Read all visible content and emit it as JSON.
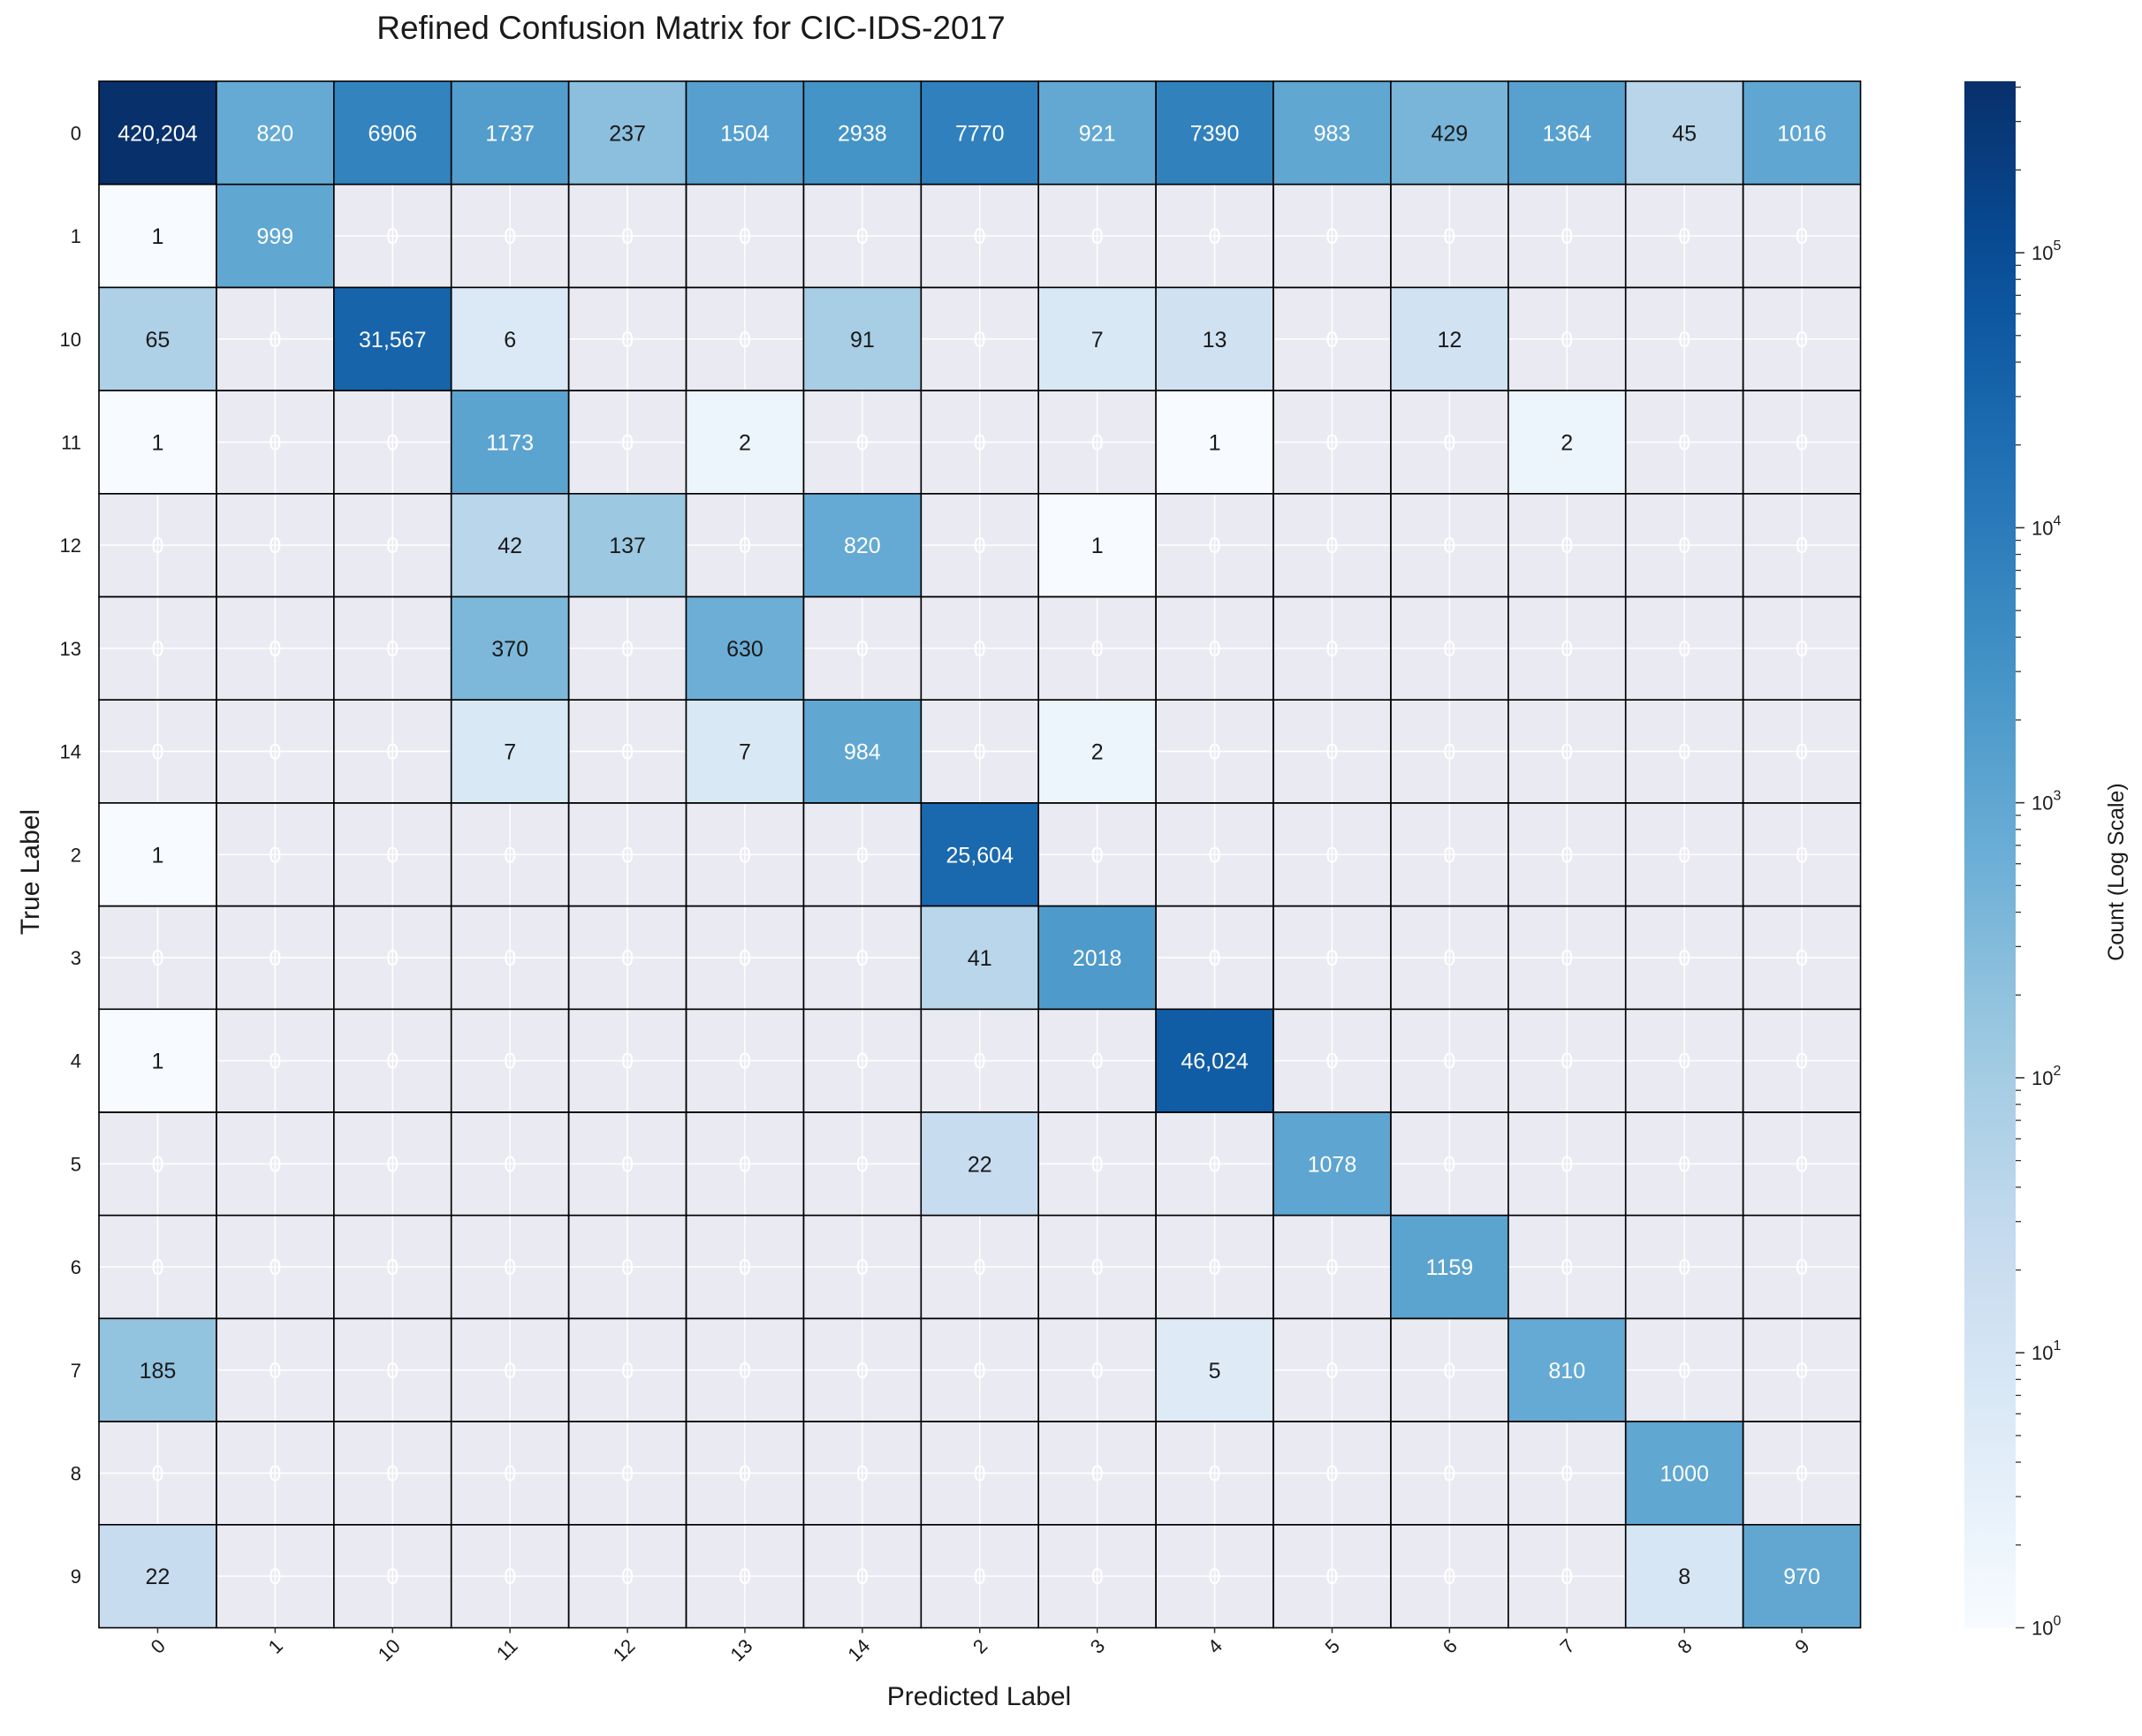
{
  "chart_data": {
    "type": "heatmap",
    "title": "Refined Confusion Matrix for CIC-IDS-2017",
    "xlabel": "Predicted Label",
    "ylabel": "True Label",
    "x_categories": [
      "0",
      "1",
      "10",
      "11",
      "12",
      "13",
      "14",
      "2",
      "3",
      "4",
      "5",
      "6",
      "7",
      "8",
      "9"
    ],
    "y_categories": [
      "0",
      "1",
      "10",
      "11",
      "12",
      "13",
      "14",
      "2",
      "3",
      "4",
      "5",
      "6",
      "7",
      "8",
      "9"
    ],
    "values": [
      [
        420204,
        820,
        6906,
        1737,
        237,
        1504,
        2938,
        7770,
        921,
        7390,
        983,
        429,
        1364,
        45,
        1016
      ],
      [
        1,
        999,
        0,
        0,
        0,
        0,
        0,
        0,
        0,
        0,
        0,
        0,
        0,
        0,
        0
      ],
      [
        65,
        0,
        31567,
        6,
        0,
        0,
        91,
        0,
        7,
        13,
        0,
        12,
        0,
        0,
        0
      ],
      [
        1,
        0,
        0,
        1173,
        0,
        2,
        0,
        0,
        0,
        1,
        0,
        0,
        2,
        0,
        0
      ],
      [
        0,
        0,
        0,
        42,
        137,
        0,
        820,
        0,
        1,
        0,
        0,
        0,
        0,
        0,
        0
      ],
      [
        0,
        0,
        0,
        370,
        0,
        630,
        0,
        0,
        0,
        0,
        0,
        0,
        0,
        0,
        0
      ],
      [
        0,
        0,
        0,
        7,
        0,
        7,
        984,
        0,
        2,
        0,
        0,
        0,
        0,
        0,
        0
      ],
      [
        1,
        0,
        0,
        0,
        0,
        0,
        0,
        25604,
        0,
        0,
        0,
        0,
        0,
        0,
        0
      ],
      [
        0,
        0,
        0,
        0,
        0,
        0,
        0,
        41,
        2018,
        0,
        0,
        0,
        0,
        0,
        0
      ],
      [
        1,
        0,
        0,
        0,
        0,
        0,
        0,
        0,
        0,
        46024,
        0,
        0,
        0,
        0,
        0
      ],
      [
        0,
        0,
        0,
        0,
        0,
        0,
        0,
        22,
        0,
        0,
        1078,
        0,
        0,
        0,
        0
      ],
      [
        0,
        0,
        0,
        0,
        0,
        0,
        0,
        0,
        0,
        0,
        0,
        1159,
        0,
        0,
        0
      ],
      [
        185,
        0,
        0,
        0,
        0,
        0,
        0,
        0,
        0,
        5,
        0,
        0,
        810,
        0,
        0
      ],
      [
        0,
        0,
        0,
        0,
        0,
        0,
        0,
        0,
        0,
        0,
        0,
        0,
        0,
        1000,
        0
      ],
      [
        22,
        0,
        0,
        0,
        0,
        0,
        0,
        0,
        0,
        0,
        0,
        0,
        0,
        8,
        970
      ]
    ],
    "colorbar": {
      "label": "Count (Log Scale)",
      "scale": "log",
      "range": [
        1,
        420204
      ],
      "tick_labels": [
        "10^0",
        "10^1",
        "10^2",
        "10^3",
        "10^4",
        "10^5"
      ],
      "tick_values": [
        1,
        10,
        100,
        1000,
        10000,
        100000
      ],
      "colormap": "Blues"
    },
    "zero_cell_color": "#eaeaf2",
    "zero_label_color": "#ffffff",
    "grid": true
  }
}
